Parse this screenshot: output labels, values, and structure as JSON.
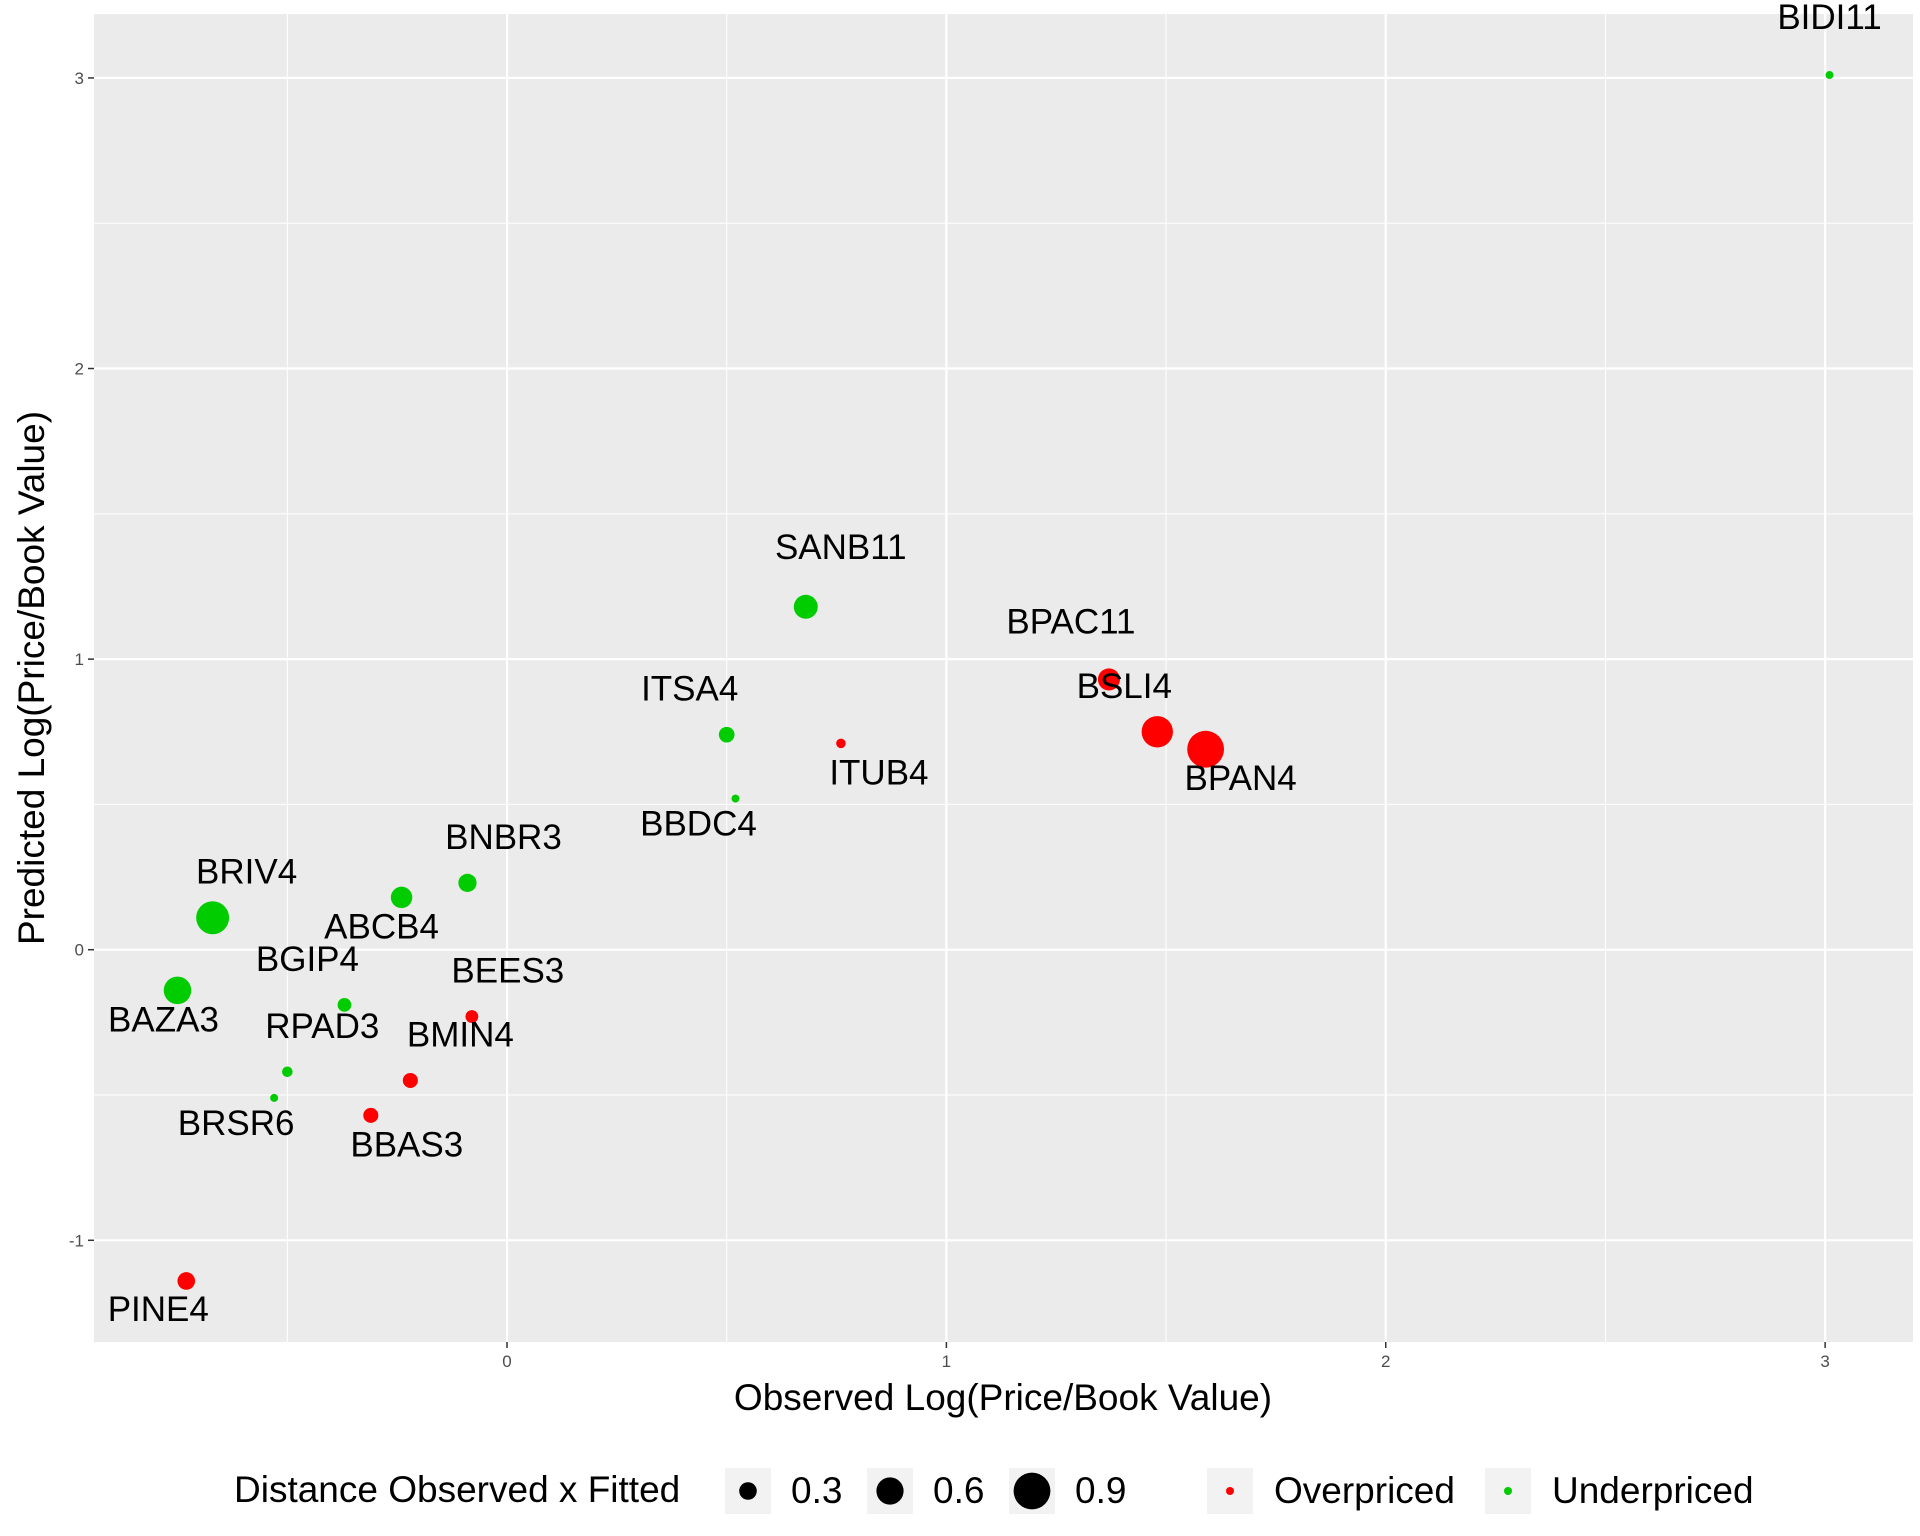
{
  "chart_data": {
    "type": "scatter",
    "title": "",
    "xlabel": "Observed Log(Price/Book Value)",
    "ylabel": "Predicted Log(Price/Book Value)",
    "xlim": [
      -0.94,
      3.2
    ],
    "ylim": [
      -1.35,
      3.22
    ],
    "xticks": [
      0,
      1,
      2,
      3
    ],
    "yticks": [
      -1,
      0,
      1,
      2,
      3
    ],
    "grid": true,
    "legend_position": "bottom",
    "size_legend": {
      "title": "Distance Observed x Fitted",
      "values": [
        0.3,
        0.6,
        0.9
      ]
    },
    "color_legend": [
      {
        "name": "Overpriced",
        "color": "#ff0000"
      },
      {
        "name": "Underpriced",
        "color": "#00cc00"
      }
    ],
    "points": [
      {
        "label": "BIDI11",
        "x": 3.01,
        "y": 3.01,
        "distance": 0.0,
        "group": "Underpriced",
        "label_dx": 0,
        "label_dy": -58
      },
      {
        "label": "SANB11",
        "x": 0.68,
        "y": 1.18,
        "distance": 0.5,
        "group": "Underpriced",
        "label_dx": 35,
        "label_dy": -60
      },
      {
        "label": "BPAC11",
        "x": 1.37,
        "y": 0.93,
        "distance": 0.44,
        "group": "Overpriced",
        "label_dx": -38,
        "label_dy": -58
      },
      {
        "label": "BSLI4",
        "x": 1.48,
        "y": 0.75,
        "distance": 0.73,
        "group": "Overpriced",
        "label_dx": -33,
        "label_dy": -46
      },
      {
        "label": "BPAN4",
        "x": 1.59,
        "y": 0.69,
        "distance": 0.9,
        "group": "Overpriced",
        "label_dx": 35,
        "label_dy": 29
      },
      {
        "label": "ITSA4",
        "x": 0.5,
        "y": 0.74,
        "distance": 0.24,
        "group": "Underpriced",
        "label_dx": -37,
        "label_dy": -46
      },
      {
        "label": "ITUB4",
        "x": 0.76,
        "y": 0.71,
        "distance": 0.05,
        "group": "Overpriced",
        "label_dx": 38,
        "label_dy": 29
      },
      {
        "label": "BBDC4",
        "x": 0.52,
        "y": 0.52,
        "distance": 0.0,
        "group": "Underpriced",
        "label_dx": -37,
        "label_dy": 25
      },
      {
        "label": "BNBR3",
        "x": -0.09,
        "y": 0.23,
        "distance": 0.32,
        "group": "Underpriced",
        "label_dx": 36,
        "label_dy": -46
      },
      {
        "label": "ABCB4",
        "x": -0.24,
        "y": 0.18,
        "distance": 0.42,
        "group": "Underpriced",
        "label_dx": -20,
        "label_dy": 29
      },
      {
        "label": "BRIV4",
        "x": -0.67,
        "y": 0.11,
        "distance": 0.78,
        "group": "Underpriced",
        "label_dx": 34,
        "label_dy": -46
      },
      {
        "label": "BAZA3",
        "x": -0.75,
        "y": -0.14,
        "distance": 0.61,
        "group": "Underpriced",
        "label_dx": -14,
        "label_dy": 29
      },
      {
        "label": "BGIP4",
        "x": -0.37,
        "y": -0.19,
        "distance": 0.18,
        "group": "Underpriced",
        "label_dx": -37,
        "label_dy": -46
      },
      {
        "label": "BEES3",
        "x": -0.08,
        "y": -0.23,
        "distance": 0.15,
        "group": "Overpriced",
        "label_dx": 36,
        "label_dy": -46
      },
      {
        "label": "RPAD3",
        "x": -0.5,
        "y": -0.42,
        "distance": 0.08,
        "group": "Underpriced",
        "label_dx": 35,
        "label_dy": -46
      },
      {
        "label": "BMIN4",
        "x": -0.22,
        "y": -0.45,
        "distance": 0.22,
        "group": "Overpriced",
        "label_dx": 50,
        "label_dy": -46
      },
      {
        "label": "BRSR6",
        "x": -0.53,
        "y": -0.51,
        "distance": 0.0,
        "group": "Underpriced",
        "label_dx": -38,
        "label_dy": 25
      },
      {
        "label": "BBAS3",
        "x": -0.31,
        "y": -0.57,
        "distance": 0.22,
        "group": "Overpriced",
        "label_dx": 36,
        "label_dy": 29
      },
      {
        "label": "PINE4",
        "x": -0.73,
        "y": -1.14,
        "distance": 0.3,
        "group": "Overpriced",
        "label_dx": -28,
        "label_dy": 28
      }
    ]
  }
}
